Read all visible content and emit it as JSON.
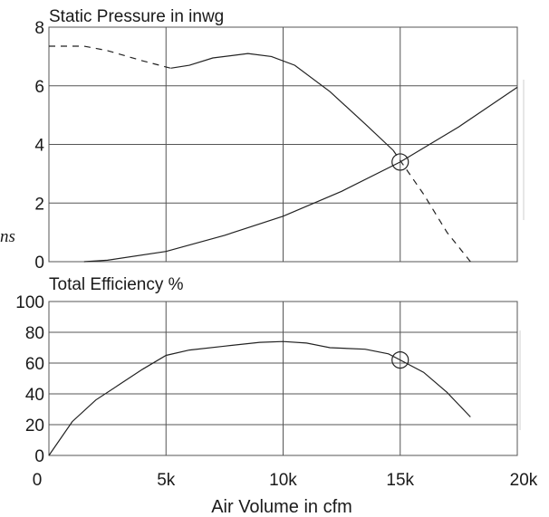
{
  "chart_data": [
    {
      "type": "line",
      "title": "Static Pressure in inwg",
      "x": [
        0,
        2500,
        5000,
        7500,
        10000,
        12500,
        15000,
        17500,
        20000
      ],
      "xlim": [
        0,
        20000
      ],
      "ylim": [
        0,
        8
      ],
      "yticks": [
        0,
        2,
        4,
        6,
        8
      ],
      "grid": true,
      "series": [
        {
          "style": "solid/dashed",
          "points": [
            [
              0,
              7.35
            ],
            [
              1500,
              7.35
            ],
            [
              2500,
              7.2
            ],
            [
              4000,
              6.85
            ],
            [
              5200,
              6.6
            ],
            [
              6000,
              6.7
            ],
            [
              7000,
              6.95
            ],
            [
              8500,
              7.1
            ],
            [
              9500,
              7.0
            ],
            [
              10500,
              6.7
            ],
            [
              12000,
              5.8
            ],
            [
              13500,
              4.7
            ],
            [
              14700,
              3.8
            ],
            [
              15000,
              3.45
            ],
            [
              16000,
              2.3
            ],
            [
              17000,
              1.0
            ],
            [
              18000,
              0
            ]
          ]
        },
        {
          "style": "solid",
          "points": [
            [
              1500,
              0
            ],
            [
              2500,
              0.05
            ],
            [
              5000,
              0.35
            ],
            [
              7500,
              0.9
            ],
            [
              10000,
              1.55
            ],
            [
              12500,
              2.4
            ],
            [
              15000,
              3.4
            ],
            [
              17500,
              4.6
            ],
            [
              20000,
              5.95
            ]
          ]
        }
      ],
      "operating_point": [
        15000,
        3.4
      ]
    },
    {
      "type": "line",
      "title": "Total Efficiency %",
      "x": [
        0,
        2500,
        5000,
        7500,
        10000,
        12500,
        15000,
        17500,
        20000
      ],
      "xlim": [
        0,
        20000
      ],
      "ylim": [
        0,
        100
      ],
      "yticks": [
        0,
        20,
        40,
        60,
        80,
        100
      ],
      "grid": true,
      "series": [
        {
          "style": "solid",
          "points": [
            [
              0,
              0
            ],
            [
              1000,
              22
            ],
            [
              2000,
              36
            ],
            [
              3000,
              46
            ],
            [
              4000,
              56
            ],
            [
              5000,
              65
            ],
            [
              6000,
              68.5
            ],
            [
              7500,
              71
            ],
            [
              9000,
              73.5
            ],
            [
              10000,
              74
            ],
            [
              11000,
              73
            ],
            [
              12000,
              70
            ],
            [
              13500,
              69
            ],
            [
              14500,
              66
            ],
            [
              15000,
              62
            ],
            [
              16000,
              54
            ],
            [
              17000,
              41
            ],
            [
              18000,
              25
            ]
          ]
        }
      ],
      "operating_point": [
        15000,
        62
      ]
    }
  ],
  "x_axis": {
    "label": "Air Volume in cfm",
    "tick_labels": [
      "0",
      "5k",
      "10k",
      "15k",
      "20k"
    ]
  },
  "margin_text": "ns"
}
